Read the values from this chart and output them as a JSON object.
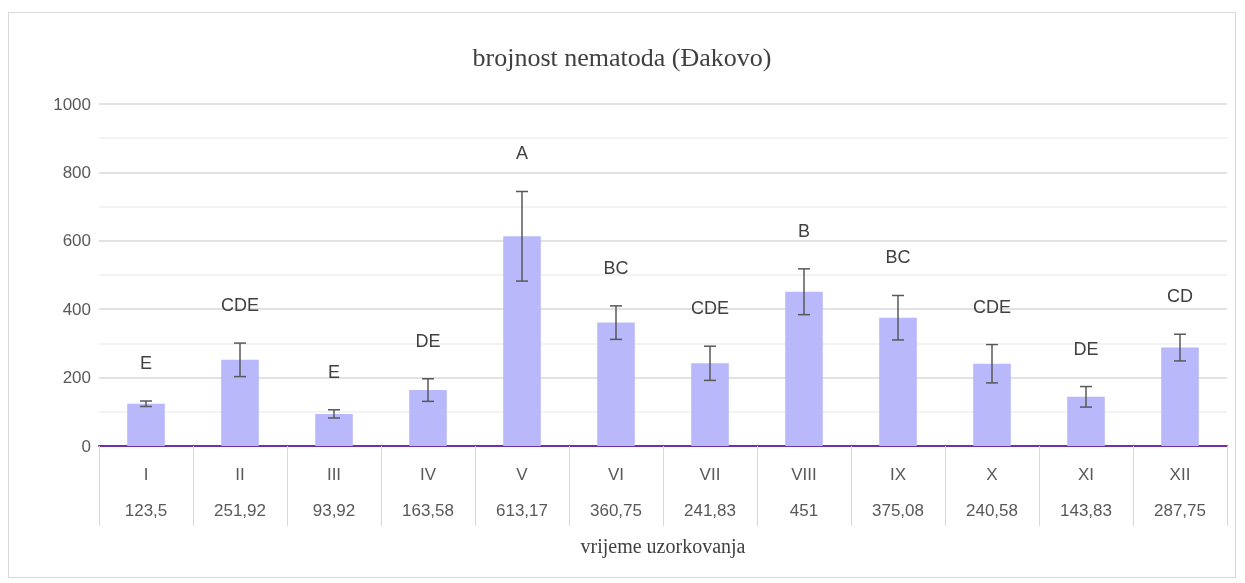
{
  "chart_data": {
    "type": "bar",
    "title": "brojnost nematoda (Đakovo)",
    "xlabel": "vrijeme uzorkovanja",
    "categories": [
      "I",
      "II",
      "III",
      "IV",
      "V",
      "VI",
      "VII",
      "VIII",
      "IX",
      "X",
      "XI",
      "XII"
    ],
    "values": [
      123.5,
      251.92,
      93.92,
      163.58,
      613.17,
      360.75,
      241.83,
      451,
      375.08,
      240.58,
      143.83,
      287.75
    ],
    "value_labels": [
      "123,5",
      "251,92",
      "93,92",
      "163,58",
      "613,17",
      "360,75",
      "241,83",
      "451",
      "375,08",
      "240,58",
      "143,83",
      "287,75"
    ],
    "errors": [
      8,
      49,
      12,
      33,
      131,
      49,
      50,
      67,
      65,
      56,
      30,
      39
    ],
    "color": "#b8b8fb",
    "ylim": [
      0,
      1000
    ],
    "yticks": [
      0,
      200,
      400,
      600,
      800,
      1000
    ],
    "grid": true,
    "annotations": [
      "E",
      "CDE",
      "E",
      "DE",
      "A",
      "BC",
      "CDE",
      "B",
      "BC",
      "CDE",
      "DE",
      "CD"
    ]
  }
}
